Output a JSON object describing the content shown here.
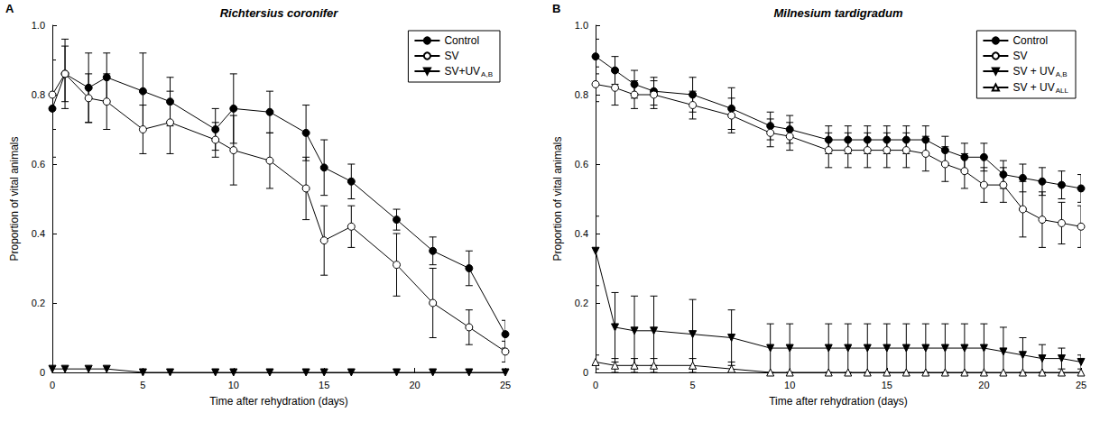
{
  "chart_data": [
    {
      "type": "line",
      "label": "A",
      "title": "Richtersius coronifer",
      "x_label": "Time after rehydration (days)",
      "y_label": "Proportion of vital animals",
      "xlim": [
        0,
        25
      ],
      "xticks": [
        0,
        5,
        10,
        15,
        20,
        25
      ],
      "ylim": [
        0,
        1
      ],
      "yticks": [
        0,
        0.2,
        0.4,
        0.6,
        0.8,
        {
          "value": 1,
          "label": "1.0"
        }
      ],
      "legend": "top-right",
      "grid": false,
      "x": [
        0,
        0.7,
        2,
        3,
        5,
        6.5,
        9,
        10,
        12,
        14,
        15,
        16.5,
        19,
        21,
        23,
        25
      ],
      "series": [
        {
          "name": "Control",
          "color": "#000000",
          "marker": "circle",
          "values": [
            0.76,
            0.86,
            0.82,
            0.85,
            0.81,
            0.78,
            0.7,
            0.76,
            0.75,
            0.69,
            0.59,
            0.55,
            0.44,
            0.35,
            0.3,
            0.11
          ],
          "errors": [
            0.14,
            0.1,
            0.1,
            0.07,
            0.11,
            0.07,
            0.06,
            0.1,
            0.06,
            0.08,
            0.08,
            0.05,
            0.03,
            0.04,
            0.05,
            0.04
          ]
        },
        {
          "name": "SV",
          "color": "#000000",
          "marker": "open_circle",
          "values": [
            0.8,
            0.86,
            0.79,
            0.78,
            0.7,
            0.72,
            0.67,
            0.64,
            0.61,
            0.53,
            0.38,
            0.42,
            0.31,
            0.2,
            0.13,
            0.06
          ],
          "errors": [
            0.1,
            0.08,
            0.07,
            0.08,
            0.07,
            0.09,
            0.05,
            0.1,
            0.08,
            0.09,
            0.1,
            0.06,
            0.09,
            0.1,
            0.05,
            0.03
          ]
        },
        {
          "name": "SV+UV A,B",
          "color": "#000000",
          "marker": "triangle_down",
          "values": [
            0.01,
            0.01,
            0.01,
            0.01,
            0,
            0,
            0,
            0,
            0,
            0,
            0,
            0,
            0,
            0,
            0,
            0
          ],
          "errors": [
            0,
            0,
            0,
            0,
            0,
            0,
            0,
            0,
            0,
            0,
            0,
            0,
            0,
            0,
            0,
            0
          ]
        }
      ]
    },
    {
      "type": "line",
      "label": "B",
      "title": "Milnesium tardigradum",
      "x_label": "Time after rehydration (days)",
      "y_label": "Proportion of vital animals",
      "xlim": [
        0,
        25
      ],
      "xticks": [
        0,
        5,
        10,
        15,
        20,
        25
      ],
      "ylim": [
        0,
        1
      ],
      "yticks": [
        0,
        0.2,
        0.4,
        0.6,
        0.8,
        {
          "value": 1,
          "label": "1.0"
        }
      ],
      "legend": "top-right",
      "grid": false,
      "x": [
        0,
        1,
        2,
        3,
        5,
        7,
        9,
        10,
        12,
        13,
        14,
        15,
        16,
        17,
        18,
        19,
        20,
        21,
        22,
        23,
        24,
        25
      ],
      "series": [
        {
          "name": "Control",
          "color": "#000000",
          "marker": "circle",
          "values": [
            0.91,
            0.87,
            0.83,
            0.81,
            0.8,
            0.76,
            0.71,
            0.7,
            0.67,
            0.67,
            0.67,
            0.67,
            0.67,
            0.67,
            0.64,
            0.62,
            0.62,
            0.57,
            0.56,
            0.55,
            0.54,
            0.53
          ],
          "errors": [
            0.05,
            0.04,
            0.04,
            0.04,
            0.05,
            0.06,
            0.04,
            0.04,
            0.04,
            0.04,
            0.04,
            0.04,
            0.04,
            0.04,
            0.04,
            0.04,
            0.04,
            0.04,
            0.04,
            0.04,
            0.04,
            0.04
          ]
        },
        {
          "name": "SV",
          "color": "#000000",
          "marker": "open_circle",
          "values": [
            0.83,
            0.82,
            0.8,
            0.8,
            0.77,
            0.74,
            0.69,
            0.68,
            0.64,
            0.64,
            0.64,
            0.64,
            0.64,
            0.63,
            0.6,
            0.58,
            0.54,
            0.54,
            0.47,
            0.44,
            0.43,
            0.42
          ],
          "errors": [
            0.05,
            0.05,
            0.04,
            0.04,
            0.04,
            0.05,
            0.04,
            0.04,
            0.05,
            0.05,
            0.05,
            0.05,
            0.05,
            0.05,
            0.05,
            0.05,
            0.05,
            0.05,
            0.08,
            0.08,
            0.06,
            0.06
          ]
        },
        {
          "name": "SV + UV A,B",
          "color": "#000000",
          "marker": "triangle_down",
          "values": [
            0.35,
            0.13,
            0.12,
            0.12,
            0.11,
            0.1,
            0.07,
            0.07,
            0.07,
            0.07,
            0.07,
            0.07,
            0.07,
            0.07,
            0.07,
            0.07,
            0.07,
            0.06,
            0.05,
            0.04,
            0.04,
            0.03
          ],
          "errors": [
            0.1,
            0.1,
            0.1,
            0.1,
            0.1,
            0.08,
            0.07,
            0.07,
            0.07,
            0.07,
            0.07,
            0.07,
            0.07,
            0.07,
            0.07,
            0.07,
            0.07,
            0.07,
            0.05,
            0.04,
            0.03,
            0.02
          ]
        },
        {
          "name": "SV + UV ALL",
          "color": "#000000",
          "marker": "open_triangle_up",
          "values": [
            0.03,
            0.02,
            0.02,
            0.02,
            0.02,
            0.01,
            0,
            0,
            0,
            0,
            0,
            0,
            0,
            0,
            0,
            0,
            0,
            0,
            0,
            0,
            0,
            0
          ],
          "errors": [
            0.02,
            0.02,
            0.02,
            0.02,
            0.02,
            0.02,
            0,
            0,
            0,
            0,
            0,
            0,
            0,
            0,
            0,
            0,
            0,
            0,
            0,
            0,
            0,
            0
          ]
        }
      ]
    }
  ]
}
